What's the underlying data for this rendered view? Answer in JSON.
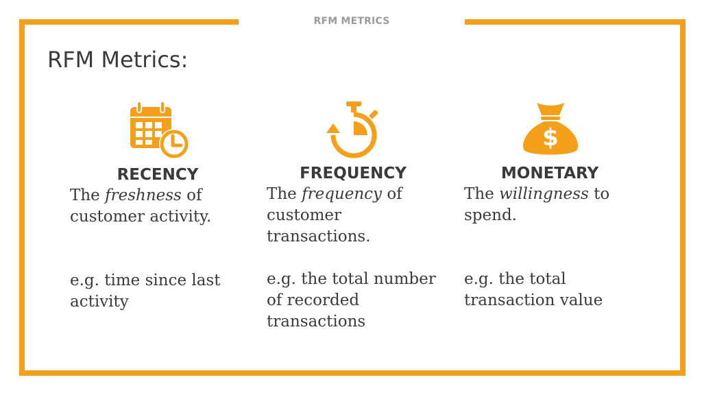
{
  "slide": {
    "header_label": "RFM METRICS",
    "title": "RFM Metrics:",
    "accent_color": "#F5A01A",
    "text_color": "#3a3a3a",
    "header_color": "#9a9a9a"
  },
  "columns": [
    {
      "icon": "calendar-clock-icon",
      "heading": "RECENCY",
      "desc_prefix": "The ",
      "desc_emphasis": "freshness",
      "desc_suffix": " of customer activity.",
      "example": "e.g. time since last activity"
    },
    {
      "icon": "stopwatch-icon",
      "heading": "FREQUENCY",
      "desc_prefix": "The ",
      "desc_emphasis": "frequency",
      "desc_suffix": " of customer transactions.",
      "example": "e.g. the total number of recorded transactions"
    },
    {
      "icon": "money-bag-icon",
      "heading": "MONETARY",
      "desc_prefix": "The ",
      "desc_emphasis": "willingness",
      "desc_suffix": " to spend.",
      "example": "e.g. the total transaction value"
    }
  ]
}
